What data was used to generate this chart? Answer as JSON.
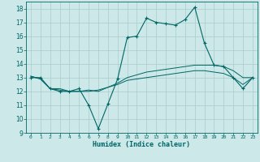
{
  "xlabel": "Humidex (Indice chaleur)",
  "bg_color": "#cce8e8",
  "grid_color": "#aacccc",
  "line_color": "#006666",
  "xlim": [
    -0.5,
    23.5
  ],
  "ylim": [
    9,
    18.5
  ],
  "yticks": [
    9,
    10,
    11,
    12,
    13,
    14,
    15,
    16,
    17,
    18
  ],
  "xticks": [
    0,
    1,
    2,
    3,
    4,
    5,
    6,
    7,
    8,
    9,
    10,
    11,
    12,
    13,
    14,
    15,
    16,
    17,
    18,
    19,
    20,
    21,
    22,
    23
  ],
  "x": [
    0,
    1,
    2,
    3,
    4,
    5,
    6,
    7,
    8,
    9,
    10,
    11,
    12,
    13,
    14,
    15,
    16,
    17,
    18,
    19,
    20,
    21,
    22,
    23
  ],
  "line1": [
    13.0,
    13.0,
    12.2,
    12.0,
    12.0,
    12.2,
    11.0,
    9.3,
    11.1,
    12.9,
    15.9,
    16.0,
    17.3,
    17.0,
    16.9,
    16.8,
    17.2,
    18.1,
    15.5,
    13.9,
    13.8,
    13.0,
    12.2,
    13.0
  ],
  "line2": [
    13.1,
    12.9,
    12.2,
    12.2,
    12.0,
    12.0,
    12.1,
    12.0,
    12.3,
    12.6,
    13.0,
    13.2,
    13.4,
    13.5,
    13.6,
    13.7,
    13.8,
    13.9,
    13.9,
    13.9,
    13.8,
    13.5,
    13.0,
    13.0
  ],
  "line3": [
    13.1,
    12.9,
    12.2,
    12.1,
    12.0,
    12.0,
    12.0,
    12.1,
    12.3,
    12.5,
    12.8,
    12.9,
    13.0,
    13.1,
    13.2,
    13.3,
    13.4,
    13.5,
    13.5,
    13.4,
    13.3,
    13.0,
    12.5,
    13.0
  ]
}
